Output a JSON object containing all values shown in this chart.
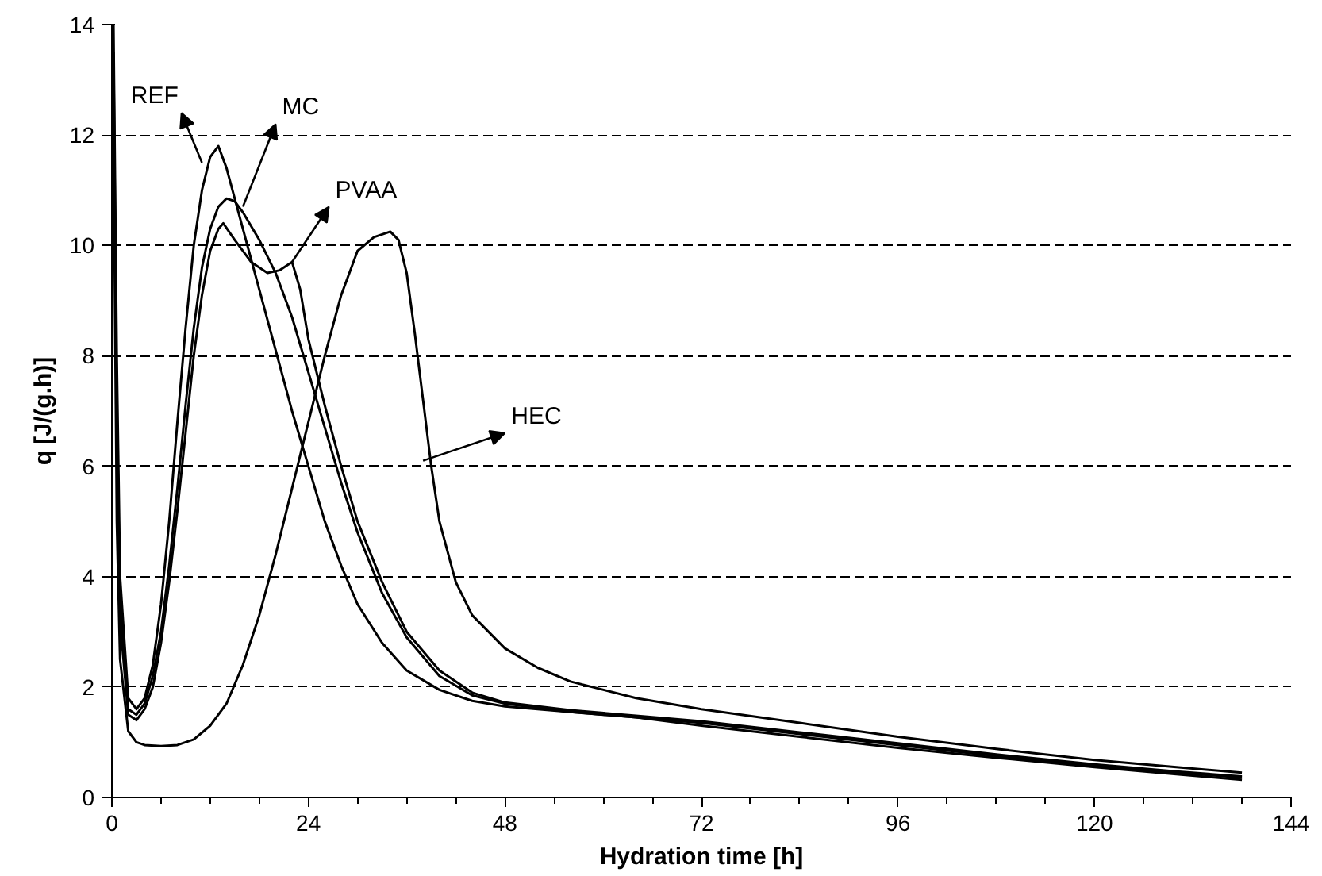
{
  "chart_data": {
    "type": "line",
    "xlabel": "Hydration time [h]",
    "ylabel": "q [J/(g.h)]",
    "xlim": [
      0,
      144
    ],
    "ylim": [
      0,
      14
    ],
    "xticks": [
      0,
      24,
      48,
      72,
      96,
      120,
      144
    ],
    "yticks": [
      0,
      2,
      4,
      6,
      8,
      10,
      12,
      14
    ],
    "grid": "y",
    "line_style": "solid",
    "series": [
      {
        "color": "#000000",
        "x": [
          0.2,
          0.6,
          1,
          2,
          3,
          4,
          5,
          6,
          7,
          8,
          9,
          10,
          11,
          12,
          13,
          14,
          16,
          18,
          20,
          22,
          24,
          26,
          28,
          30,
          33,
          36,
          40,
          44,
          48,
          56,
          64,
          72,
          84,
          96,
          108,
          120,
          130,
          138
        ],
        "values": [
          14,
          8,
          4,
          1.8,
          1.6,
          1.8,
          2.4,
          3.5,
          5,
          6.8,
          8.5,
          10,
          11,
          11.6,
          11.8,
          11.4,
          10.3,
          9.2,
          8.1,
          7,
          6,
          5,
          4.2,
          3.5,
          2.8,
          2.3,
          1.95,
          1.75,
          1.65,
          1.55,
          1.45,
          1.3,
          1.1,
          0.9,
          0.72,
          0.55,
          0.42,
          0.32
        ]
      },
      {
        "color": "#000000",
        "x": [
          0.2,
          0.6,
          1,
          2,
          3,
          4,
          5,
          6,
          7,
          8,
          9,
          10,
          11,
          12,
          13,
          14,
          15,
          16,
          18,
          20,
          22,
          24,
          26,
          28,
          30,
          33,
          36,
          40,
          44,
          48,
          56,
          64,
          72,
          84,
          96,
          108,
          120,
          130,
          138
        ],
        "values": [
          13.5,
          7,
          3.5,
          1.6,
          1.5,
          1.7,
          2.2,
          3,
          4.2,
          5.6,
          7.1,
          8.5,
          9.6,
          10.3,
          10.7,
          10.85,
          10.8,
          10.6,
          10.1,
          9.5,
          8.7,
          7.7,
          6.7,
          5.7,
          4.8,
          3.7,
          2.9,
          2.2,
          1.85,
          1.7,
          1.55,
          1.45,
          1.35,
          1.15,
          0.95,
          0.75,
          0.58,
          0.45,
          0.36
        ]
      },
      {
        "color": "#000000",
        "x": [
          0.2,
          0.6,
          1,
          2,
          3,
          4,
          5,
          6,
          7,
          8,
          9,
          10,
          11,
          12,
          13,
          13.6,
          15,
          17,
          19,
          20.5,
          22,
          23,
          24,
          26,
          28,
          30,
          33,
          36,
          40,
          44,
          48,
          56,
          64,
          72,
          84,
          96,
          108,
          120,
          130,
          138
        ],
        "values": [
          13,
          6.5,
          3.2,
          1.5,
          1.4,
          1.6,
          2,
          2.8,
          3.9,
          5.2,
          6.6,
          8,
          9.1,
          9.9,
          10.3,
          10.4,
          10.1,
          9.7,
          9.5,
          9.55,
          9.7,
          9.2,
          8.3,
          7.1,
          6,
          5,
          3.9,
          3,
          2.3,
          1.9,
          1.72,
          1.58,
          1.48,
          1.38,
          1.18,
          0.98,
          0.78,
          0.6,
          0.47,
          0.38
        ]
      },
      {
        "color": "#000000",
        "x": [
          0.2,
          0.6,
          1,
          2,
          3,
          4,
          6,
          8,
          10,
          12,
          14,
          16,
          18,
          20,
          22,
          24,
          26,
          28,
          30,
          32,
          34,
          35,
          36,
          37,
          38,
          39,
          40,
          42,
          44,
          48,
          52,
          56,
          64,
          72,
          84,
          96,
          108,
          120,
          130,
          138
        ],
        "values": [
          12,
          5,
          2.5,
          1.2,
          1,
          0.95,
          0.93,
          0.95,
          1.05,
          1.3,
          1.7,
          2.4,
          3.3,
          4.4,
          5.6,
          6.8,
          8,
          9.1,
          9.9,
          10.15,
          10.25,
          10.1,
          9.5,
          8.4,
          7.2,
          6,
          5,
          3.9,
          3.3,
          2.7,
          2.35,
          2.1,
          1.8,
          1.6,
          1.35,
          1.1,
          0.88,
          0.68,
          0.55,
          0.45
        ]
      }
    ],
    "annotations": [
      {
        "text": "REF",
        "x": 11,
        "y": 11.5
      },
      {
        "text": "MC",
        "x": 16,
        "y": 10.7
      },
      {
        "text": "PVAA",
        "x": 22,
        "y": 9.7
      },
      {
        "text": "HEC",
        "x": 38,
        "y": 6.1
      }
    ]
  }
}
